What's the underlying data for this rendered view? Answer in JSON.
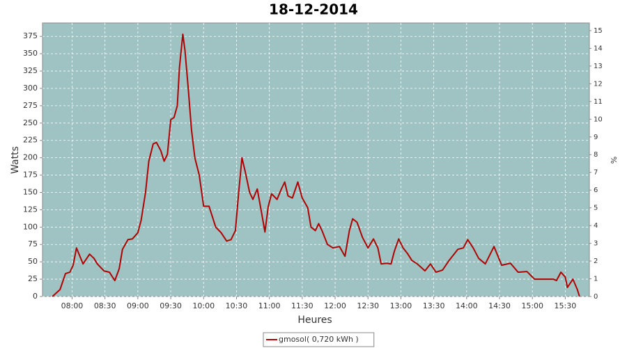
{
  "chart_data": {
    "type": "line",
    "title": "18-12-2014",
    "x_label": "Heures",
    "y_label": "Watts",
    "y2_label": "%",
    "x": [
      "07:42",
      "07:49",
      "07:54",
      "07:58",
      "08:01",
      "08:04",
      "08:10",
      "08:16",
      "08:20",
      "08:23",
      "08:29",
      "08:34",
      "08:39",
      "08:43",
      "08:46",
      "08:51",
      "08:55",
      "09:00",
      "09:03",
      "09:07",
      "09:10",
      "09:14",
      "09:17",
      "09:21",
      "09:24",
      "09:27",
      "09:30",
      "09:33",
      "09:36",
      "09:38",
      "09:41",
      "09:43",
      "09:46",
      "09:49",
      "09:52",
      "09:56",
      "10:00",
      "10:05",
      "10:11",
      "10:16",
      "10:21",
      "10:25",
      "10:29",
      "10:32",
      "10:35",
      "10:38",
      "10:42",
      "10:45",
      "10:49",
      "10:53",
      "10:56",
      "10:59",
      "11:02",
      "11:07",
      "11:11",
      "11:14",
      "11:17",
      "11:21",
      "11:26",
      "11:30",
      "11:35",
      "11:38",
      "11:42",
      "11:45",
      "11:48",
      "11:53",
      "11:58",
      "12:04",
      "12:09",
      "12:13",
      "12:16",
      "12:20",
      "12:25",
      "12:30",
      "12:35",
      "12:39",
      "12:42",
      "12:47",
      "12:51",
      "12:54",
      "12:58",
      "13:02",
      "13:06",
      "13:10",
      "13:15",
      "13:22",
      "13:27",
      "13:32",
      "13:38",
      "13:44",
      "13:52",
      "13:57",
      "14:01",
      "14:06",
      "14:11",
      "14:17",
      "14:25",
      "14:32",
      "14:40",
      "14:47",
      "14:55",
      "15:02",
      "15:10",
      "15:19",
      "15:22",
      "15:26",
      "15:30",
      "15:32",
      "15:37",
      "15:41",
      "15:43"
    ],
    "series": [
      {
        "name": "gmosol( 0,720 kWh )",
        "color": "#b00000",
        "values": [
          0,
          10,
          33,
          35,
          45,
          70,
          47,
          61,
          55,
          47,
          37,
          35,
          23,
          40,
          68,
          82,
          83,
          92,
          110,
          150,
          195,
          220,
          222,
          210,
          195,
          205,
          255,
          258,
          275,
          330,
          378,
          355,
          300,
          240,
          200,
          175,
          130,
          130,
          100,
          92,
          80,
          82,
          95,
          150,
          200,
          180,
          150,
          140,
          155,
          120,
          93,
          130,
          148,
          140,
          155,
          165,
          145,
          142,
          165,
          142,
          128,
          100,
          95,
          105,
          95,
          75,
          70,
          72,
          58,
          95,
          112,
          107,
          85,
          70,
          83,
          70,
          47,
          48,
          47,
          65,
          83,
          70,
          62,
          52,
          47,
          37,
          47,
          35,
          38,
          52,
          68,
          70,
          82,
          70,
          55,
          47,
          72,
          45,
          48,
          35,
          36,
          25,
          25,
          25,
          23,
          35,
          28,
          13,
          25,
          10,
          0
        ]
      }
    ],
    "xlim": [
      "07:33",
      "15:52"
    ],
    "xticks": [
      "08:00",
      "08:30",
      "09:00",
      "09:30",
      "10:00",
      "10:30",
      "11:00",
      "11:30",
      "12:00",
      "12:30",
      "13:00",
      "13:30",
      "14:00",
      "14:30",
      "15:00",
      "15:30"
    ],
    "ylim": [
      0,
      394.3
    ],
    "yticks": [
      0,
      25,
      50,
      75,
      100,
      125,
      150,
      175,
      200,
      225,
      250,
      275,
      300,
      325,
      350,
      375
    ],
    "y2lim": [
      0,
      15.43
    ],
    "y2ticks": [
      0,
      1,
      2,
      3,
      4,
      5,
      6,
      7,
      8,
      9,
      10,
      11,
      12,
      13,
      14,
      15
    ],
    "grid": true,
    "plot_background": "#9fc3c3",
    "legend": "bottom"
  }
}
